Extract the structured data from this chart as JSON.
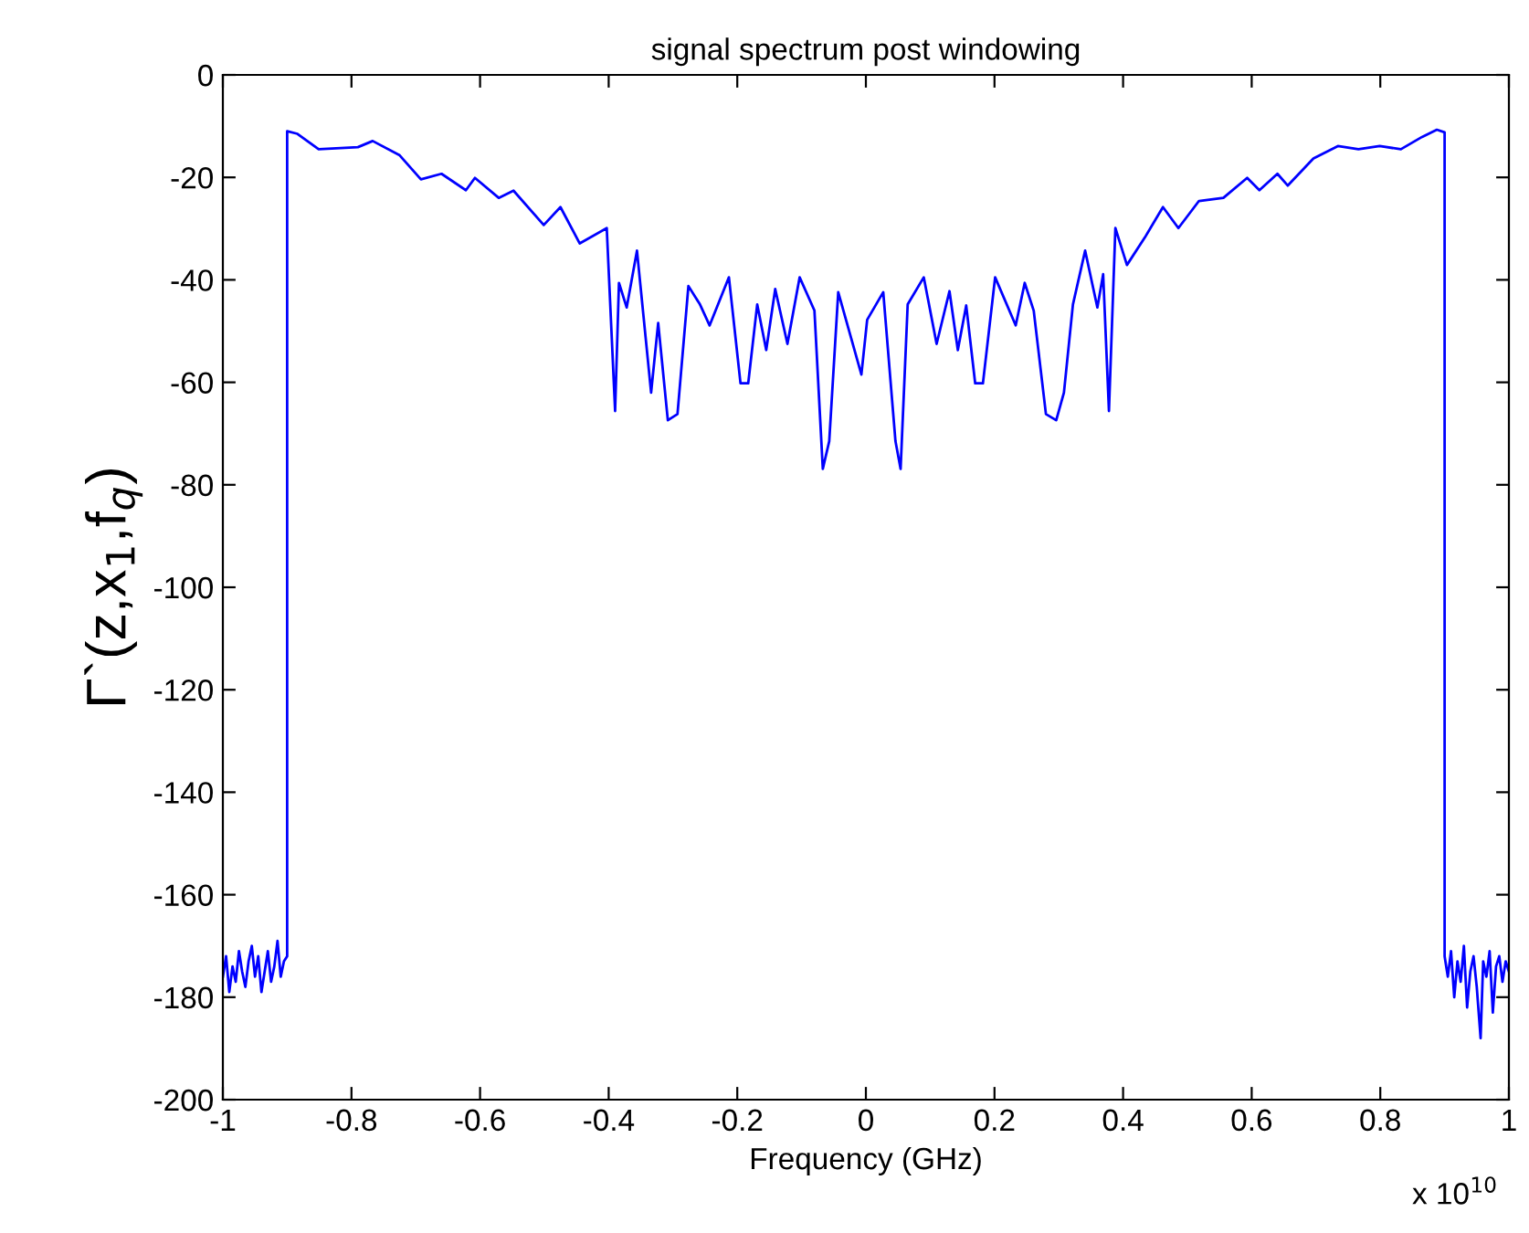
{
  "chart_data": {
    "type": "line",
    "title": "signal spectrum post windowing",
    "xlabel": "Frequency (GHz)",
    "ylabel": "Γ`(z,x$_{1}$,f$_{q}$)",
    "annotations": [
      "x 10$^{10}$"
    ],
    "xlim": [
      -1,
      1
    ],
    "xticks": [
      -1,
      -0.8,
      -0.6,
      -0.4,
      -0.2,
      0,
      0.2,
      0.4,
      0.6,
      0.8,
      1
    ],
    "ylim": [
      -200,
      0
    ],
    "yticks": [
      -200,
      -180,
      -160,
      -140,
      -120,
      -100,
      -80,
      -60,
      -40,
      -20,
      0
    ],
    "grid": false,
    "legend": false,
    "marker": "none",
    "line_style": "solid",
    "series": [
      {
        "color": "#0000ff",
        "x": [
          -1,
          -0.995,
          -0.99,
          -0.985,
          -0.98,
          -0.975,
          -0.97,
          -0.965,
          -0.96,
          -0.955,
          -0.95,
          -0.945,
          -0.94,
          -0.935,
          -0.93,
          -0.925,
          -0.92,
          -0.915,
          -0.91,
          -0.905,
          -0.9,
          -0.9,
          -0.884,
          -0.851,
          -0.79,
          -0.767,
          -0.725,
          -0.692,
          -0.66,
          -0.622,
          -0.608,
          -0.571,
          -0.548,
          -0.501,
          -0.475,
          -0.445,
          -0.403,
          -0.39,
          -0.384,
          -0.372,
          -0.356,
          -0.334,
          -0.323,
          -0.308,
          -0.293,
          -0.276,
          -0.258,
          -0.243,
          -0.213,
          -0.195,
          -0.183,
          -0.169,
          -0.155,
          -0.141,
          -0.122,
          -0.103,
          -0.08,
          -0.067,
          -0.057,
          -0.043,
          -0.007,
          0.002,
          0.027,
          0.046,
          0.054,
          0.065,
          0.09,
          0.11,
          0.13,
          0.143,
          0.156,
          0.17,
          0.182,
          0.201,
          0.233,
          0.247,
          0.261,
          0.28,
          0.296,
          0.308,
          0.322,
          0.341,
          0.36,
          0.369,
          0.378,
          0.388,
          0.406,
          0.434,
          0.462,
          0.486,
          0.518,
          0.556,
          0.593,
          0.612,
          0.64,
          0.656,
          0.696,
          0.734,
          0.766,
          0.799,
          0.832,
          0.865,
          0.888,
          0.9,
          0.9,
          0.905,
          0.91,
          0.915,
          0.92,
          0.925,
          0.93,
          0.935,
          0.94,
          0.945,
          0.95,
          0.956,
          0.96,
          0.965,
          0.97,
          0.975,
          0.98,
          0.985,
          0.99,
          0.995,
          1
        ],
        "values": [
          -176,
          -172,
          -179,
          -174,
          -177,
          -171,
          -175,
          -178,
          -173,
          -170,
          -176,
          -172,
          -179,
          -175,
          -171,
          -177,
          -174,
          -169,
          -176,
          -173,
          -172,
          -11,
          -11.5,
          -14.5,
          -14.1,
          -12.9,
          -15.7,
          -20.4,
          -19.3,
          -22.5,
          -20.1,
          -24,
          -22.6,
          -29.3,
          -25.8,
          -32.9,
          -29.9,
          -65.6,
          -40.6,
          -45.4,
          -34.3,
          -62,
          -48.4,
          -67.4,
          -66.2,
          -41.2,
          -44.8,
          -48.9,
          -39.5,
          -60.2,
          -60.2,
          -44.8,
          -53.7,
          -41.8,
          -52.5,
          -39.5,
          -46,
          -76.9,
          -71.5,
          -42.4,
          -58.5,
          -47.8,
          -42.4,
          -71.5,
          -76.9,
          -44.8,
          -39.5,
          -52.5,
          -42.2,
          -53.7,
          -45,
          -60.2,
          -60.2,
          -39.5,
          -48.9,
          -40.6,
          -46,
          -66.2,
          -67.4,
          -62,
          -44.8,
          -34.3,
          -45.4,
          -38.9,
          -65.6,
          -29.9,
          -37.1,
          -31.7,
          -25.8,
          -29.9,
          -24.6,
          -24,
          -20.1,
          -22.5,
          -19.3,
          -21.6,
          -16.3,
          -13.9,
          -14.5,
          -13.9,
          -14.5,
          -12.1,
          -10.7,
          -11.2,
          -172,
          -176,
          -171,
          -180,
          -173,
          -177,
          -170,
          -182,
          -175,
          -172,
          -178,
          -188,
          -173,
          -176,
          -171,
          -183,
          -174,
          -172,
          -177,
          -173,
          -175
        ]
      }
    ]
  }
}
